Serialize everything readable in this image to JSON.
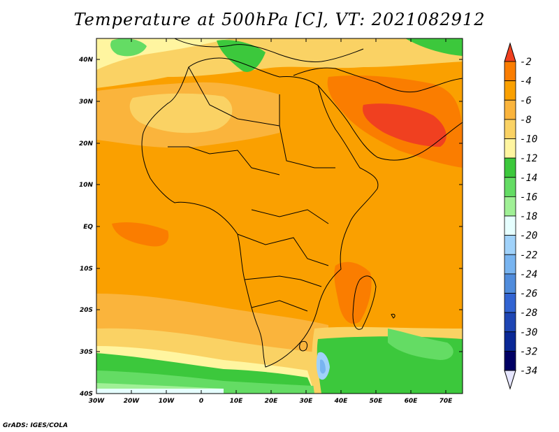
{
  "title": "Temperature at 500hPa [C], VT: 2021082912",
  "credit": "GrADS: IGES/COLA",
  "map": {
    "lon_range": [
      -30,
      75
    ],
    "lat_range": [
      -40,
      45
    ],
    "lat_ticks": [
      "40N",
      "30N",
      "20N",
      "10N",
      "EQ",
      "10S",
      "20S",
      "30S",
      "40S"
    ],
    "lon_ticks": [
      "30W",
      "20W",
      "10W",
      "0",
      "10E",
      "20E",
      "30E",
      "40E",
      "50E",
      "60E",
      "70E"
    ]
  },
  "colorbar": {
    "labels": [
      "-2",
      "-4",
      "-6",
      "-8",
      "-10",
      "-12",
      "-14",
      "-16",
      "-18",
      "-20",
      "-22",
      "-24",
      "-26",
      "-28",
      "-30",
      "-32",
      "-34"
    ],
    "colors": [
      "#f04020",
      "#fa7d00",
      "#faa000",
      "#fab43c",
      "#fad264",
      "#fff5a0",
      "#3cc83c",
      "#64dc64",
      "#a0f096",
      "#e6ffff",
      "#a0d2fa",
      "#78b4f0",
      "#508cdc",
      "#3264d2",
      "#1e46b4",
      "#0a2896",
      "#000064"
    ]
  }
}
